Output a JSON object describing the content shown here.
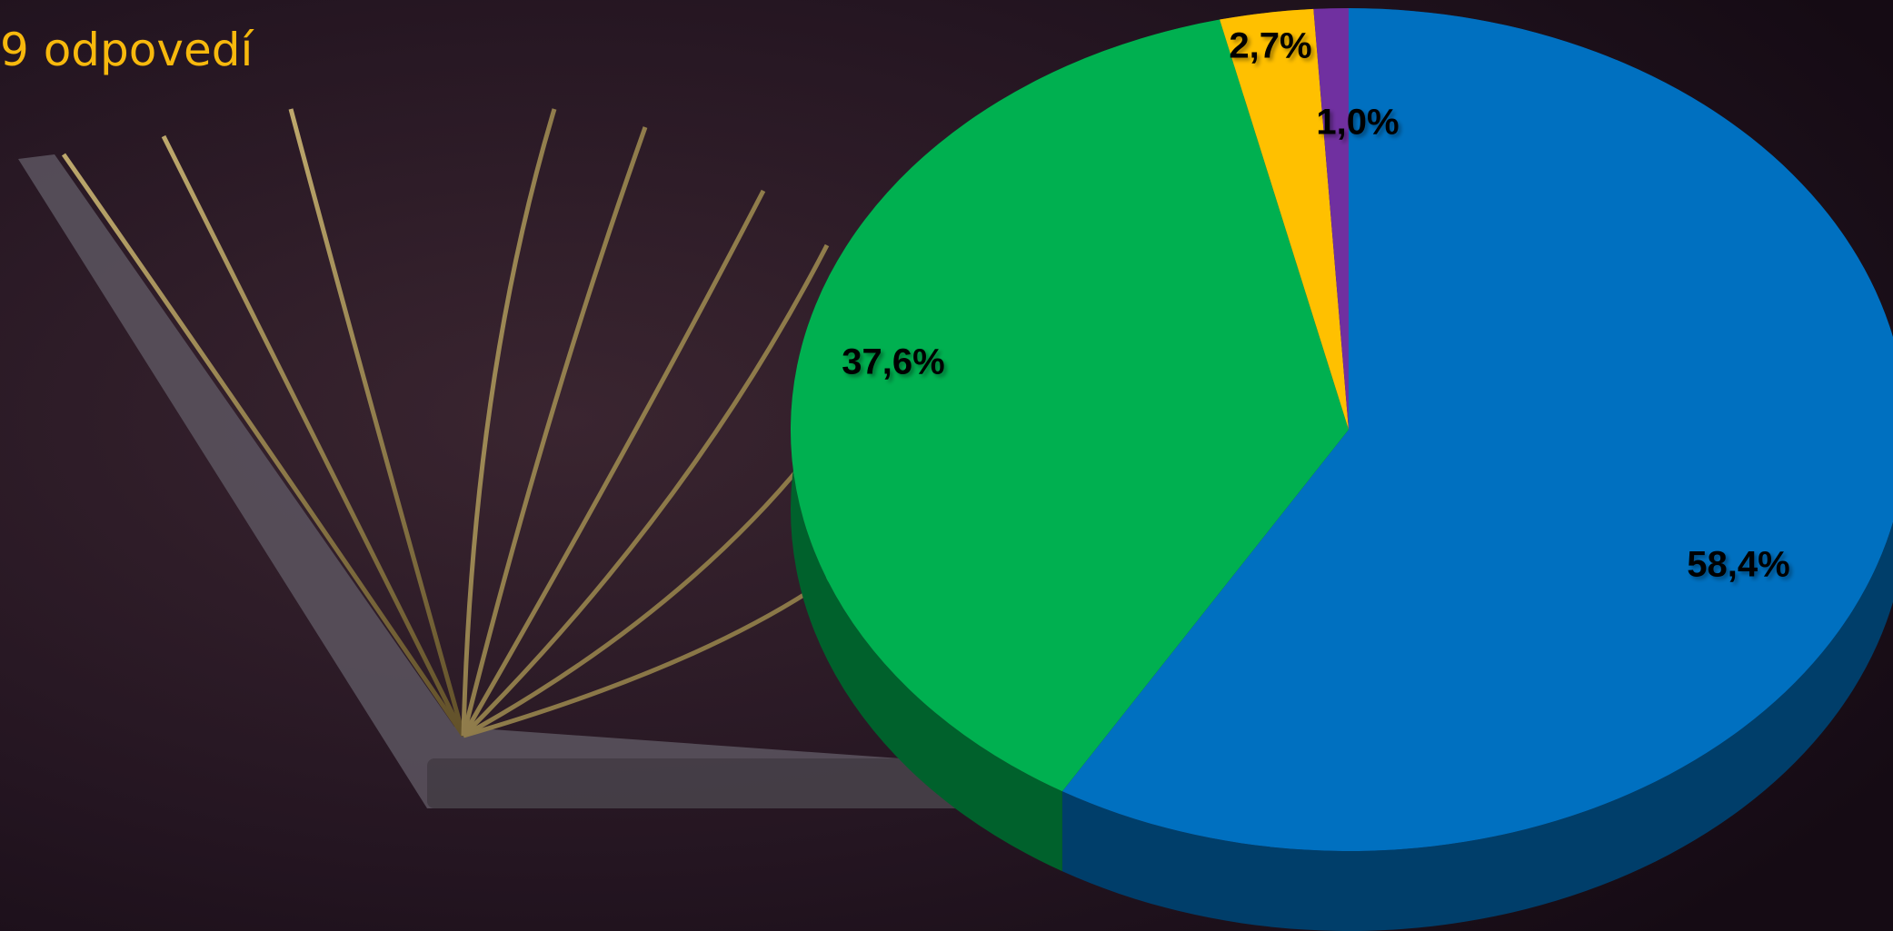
{
  "chart_data": {
    "type": "pie",
    "title": "9 odpovedí",
    "categories": [
      null,
      null,
      null,
      null
    ],
    "values": [
      58.4,
      37.6,
      2.7,
      1.0
    ],
    "value_labels": [
      "58,4%",
      "37,6%",
      "2,7%",
      "1,0%"
    ],
    "colors": [
      "#0070c0",
      "#00b050",
      "#ffc000",
      "#7030a0"
    ]
  }
}
